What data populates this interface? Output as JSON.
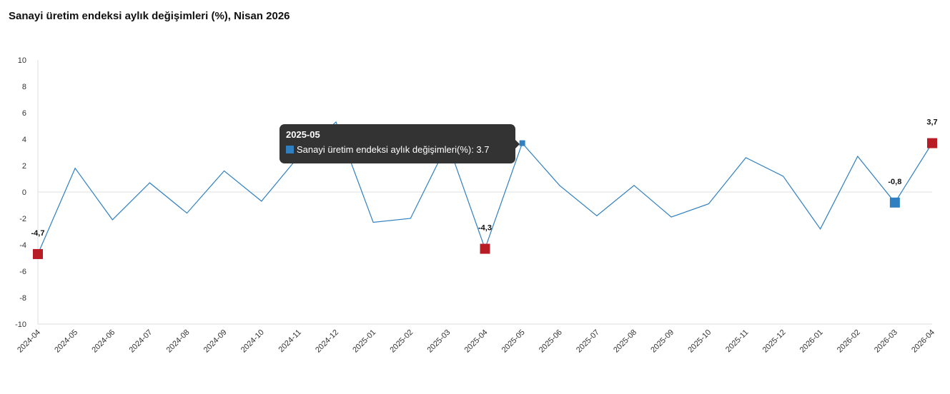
{
  "chart_data": {
    "type": "line",
    "title": "Sanayi üretim endeksi aylık değişimleri (%), Nisan 2026",
    "xlabel": "",
    "ylabel": "",
    "ylim": [
      -10,
      10
    ],
    "yticks": [
      "10",
      "8",
      "6",
      "4",
      "2",
      "0",
      "-2",
      "-4",
      "-6",
      "-8",
      "-10"
    ],
    "ytick_values": [
      10,
      8,
      6,
      4,
      2,
      0,
      -2,
      -4,
      -6,
      -8,
      -10
    ],
    "categories": [
      "2024-04",
      "2024-05",
      "2024-06",
      "2024-07",
      "2024-08",
      "2024-09",
      "2024-10",
      "2024-11",
      "2024-12",
      "2025-01",
      "2025-02",
      "2025-03",
      "2025-04",
      "2025-05",
      "2025-06",
      "2025-07",
      "2025-08",
      "2025-09",
      "2025-10",
      "2025-11",
      "2025-12",
      "2026-01",
      "2026-02",
      "2026-03",
      "2026-04"
    ],
    "series": [
      {
        "name": "Sanayi üretim endeksi aylık değişimleri(%)",
        "color": "#2f7fc1",
        "values": [
          -4.7,
          1.8,
          -2.1,
          0.7,
          -1.6,
          1.6,
          -0.7,
          2.7,
          5.3,
          -2.3,
          -2.0,
          3.7,
          -4.3,
          3.7,
          0.5,
          -1.8,
          0.5,
          -1.9,
          -0.9,
          2.6,
          1.2,
          -2.8,
          2.7,
          -0.8,
          3.7
        ]
      }
    ],
    "highlights": [
      {
        "index": 0,
        "label": "-4,7",
        "color": "#b81c25"
      },
      {
        "index": 12,
        "label": "-4,3",
        "color": "#b81c25"
      },
      {
        "index": 23,
        "label": "-0,8",
        "color": "#2f7fc1"
      },
      {
        "index": 24,
        "label": "3,7",
        "color": "#b81c25"
      }
    ],
    "grid": false,
    "zero_line": true
  },
  "tooltip": {
    "title": "2025-05",
    "series_label": "Sanayi üretim endeksi aylık değişimleri(%): 3.7",
    "index": 13
  }
}
